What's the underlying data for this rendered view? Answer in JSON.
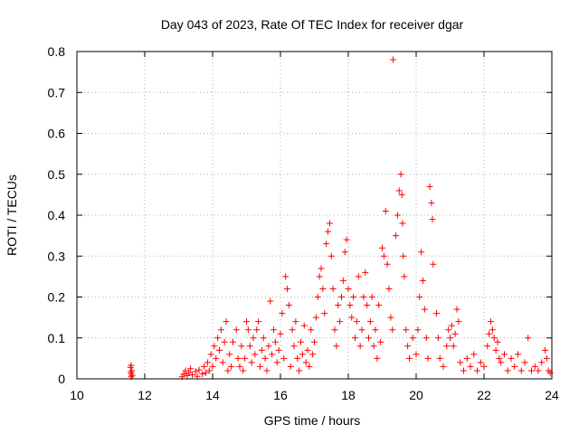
{
  "chart_data": {
    "type": "scatter",
    "title": "Day 043 of 2023, Rate Of TEC Index for receiver dgar",
    "xlabel": "GPS time / hours",
    "ylabel": "ROTI / TECUs",
    "xlim": [
      10,
      24
    ],
    "ylim": [
      0,
      0.8
    ],
    "x_ticks": [
      10,
      12,
      14,
      16,
      18,
      20,
      22,
      24
    ],
    "y_ticks": [
      0,
      0.1,
      0.2,
      0.3,
      0.4,
      0.5,
      0.6,
      0.7,
      0.8
    ],
    "grid": true,
    "marker": "plus",
    "color": "#ff0000",
    "points": [
      [
        11.6,
        0.005
      ],
      [
        11.6,
        0.012
      ],
      [
        11.62,
        0.02
      ],
      [
        11.58,
        0.028
      ],
      [
        11.6,
        0.033
      ],
      [
        11.63,
        0.008
      ],
      [
        11.59,
        0.016
      ],
      [
        13.1,
        0.005
      ],
      [
        13.15,
        0.012
      ],
      [
        13.2,
        0.02
      ],
      [
        13.25,
        0.008
      ],
      [
        13.3,
        0.015
      ],
      [
        13.35,
        0.025
      ],
      [
        13.4,
        0.01
      ],
      [
        13.5,
        0.018
      ],
      [
        13.55,
        0.006
      ],
      [
        13.6,
        0.022
      ],
      [
        13.7,
        0.012
      ],
      [
        13.75,
        0.03
      ],
      [
        13.8,
        0.015
      ],
      [
        13.85,
        0.04
      ],
      [
        13.9,
        0.02
      ],
      [
        13.95,
        0.06
      ],
      [
        14.0,
        0.03
      ],
      [
        14.05,
        0.08
      ],
      [
        14.1,
        0.05
      ],
      [
        14.15,
        0.1
      ],
      [
        14.2,
        0.07
      ],
      [
        14.25,
        0.12
      ],
      [
        14.3,
        0.04
      ],
      [
        14.35,
        0.09
      ],
      [
        14.4,
        0.14
      ],
      [
        14.45,
        0.02
      ],
      [
        14.5,
        0.06
      ],
      [
        14.55,
        0.03
      ],
      [
        14.6,
        0.09
      ],
      [
        14.7,
        0.12
      ],
      [
        14.75,
        0.05
      ],
      [
        14.8,
        0.03
      ],
      [
        14.85,
        0.08
      ],
      [
        14.9,
        0.02
      ],
      [
        14.95,
        0.05
      ],
      [
        15.0,
        0.14
      ],
      [
        15.05,
        0.12
      ],
      [
        15.1,
        0.08
      ],
      [
        15.15,
        0.04
      ],
      [
        15.2,
        0.1
      ],
      [
        15.25,
        0.06
      ],
      [
        15.3,
        0.12
      ],
      [
        15.35,
        0.14
      ],
      [
        15.4,
        0.03
      ],
      [
        15.45,
        0.07
      ],
      [
        15.5,
        0.1
      ],
      [
        15.55,
        0.05
      ],
      [
        15.6,
        0.02
      ],
      [
        15.65,
        0.08
      ],
      [
        15.7,
        0.19
      ],
      [
        15.75,
        0.06
      ],
      [
        15.8,
        0.12
      ],
      [
        15.85,
        0.09
      ],
      [
        15.9,
        0.04
      ],
      [
        15.95,
        0.07
      ],
      [
        16.0,
        0.11
      ],
      [
        16.05,
        0.16
      ],
      [
        16.1,
        0.05
      ],
      [
        16.15,
        0.25
      ],
      [
        16.2,
        0.22
      ],
      [
        16.25,
        0.18
      ],
      [
        16.3,
        0.03
      ],
      [
        16.35,
        0.12
      ],
      [
        16.4,
        0.08
      ],
      [
        16.45,
        0.14
      ],
      [
        16.5,
        0.05
      ],
      [
        16.55,
        0.02
      ],
      [
        16.6,
        0.09
      ],
      [
        16.65,
        0.06
      ],
      [
        16.7,
        0.13
      ],
      [
        16.75,
        0.04
      ],
      [
        16.8,
        0.07
      ],
      [
        16.85,
        0.03
      ],
      [
        16.9,
        0.12
      ],
      [
        16.95,
        0.06
      ],
      [
        17.0,
        0.09
      ],
      [
        17.05,
        0.15
      ],
      [
        17.1,
        0.2
      ],
      [
        17.15,
        0.25
      ],
      [
        17.2,
        0.27
      ],
      [
        17.25,
        0.22
      ],
      [
        17.3,
        0.16
      ],
      [
        17.35,
        0.33
      ],
      [
        17.4,
        0.36
      ],
      [
        17.45,
        0.38
      ],
      [
        17.5,
        0.3
      ],
      [
        17.55,
        0.22
      ],
      [
        17.6,
        0.12
      ],
      [
        17.65,
        0.08
      ],
      [
        17.7,
        0.18
      ],
      [
        17.75,
        0.14
      ],
      [
        17.8,
        0.2
      ],
      [
        17.85,
        0.24
      ],
      [
        17.9,
        0.31
      ],
      [
        17.95,
        0.34
      ],
      [
        18.0,
        0.22
      ],
      [
        18.05,
        0.18
      ],
      [
        18.1,
        0.15
      ],
      [
        18.15,
        0.2
      ],
      [
        18.2,
        0.1
      ],
      [
        18.25,
        0.14
      ],
      [
        18.3,
        0.25
      ],
      [
        18.35,
        0.08
      ],
      [
        18.4,
        0.12
      ],
      [
        18.45,
        0.2
      ],
      [
        18.5,
        0.26
      ],
      [
        18.55,
        0.18
      ],
      [
        18.6,
        0.1
      ],
      [
        18.65,
        0.14
      ],
      [
        18.7,
        0.2
      ],
      [
        18.75,
        0.08
      ],
      [
        18.8,
        0.12
      ],
      [
        18.85,
        0.05
      ],
      [
        18.9,
        0.18
      ],
      [
        18.95,
        0.09
      ],
      [
        19.0,
        0.32
      ],
      [
        19.05,
        0.3
      ],
      [
        19.1,
        0.41
      ],
      [
        19.15,
        0.28
      ],
      [
        19.2,
        0.22
      ],
      [
        19.25,
        0.15
      ],
      [
        19.3,
        0.12
      ],
      [
        19.32,
        0.78
      ],
      [
        19.4,
        0.35
      ],
      [
        19.45,
        0.4
      ],
      [
        19.5,
        0.46
      ],
      [
        19.55,
        0.5
      ],
      [
        19.58,
        0.45
      ],
      [
        19.6,
        0.38
      ],
      [
        19.62,
        0.3
      ],
      [
        19.65,
        0.25
      ],
      [
        19.7,
        0.12
      ],
      [
        19.75,
        0.08
      ],
      [
        19.8,
        0.05
      ],
      [
        19.9,
        0.1
      ],
      [
        20.0,
        0.06
      ],
      [
        20.05,
        0.12
      ],
      [
        20.1,
        0.2
      ],
      [
        20.15,
        0.31
      ],
      [
        20.2,
        0.24
      ],
      [
        20.25,
        0.17
      ],
      [
        20.3,
        0.1
      ],
      [
        20.35,
        0.05
      ],
      [
        20.4,
        0.47
      ],
      [
        20.45,
        0.43
      ],
      [
        20.48,
        0.39
      ],
      [
        20.5,
        0.28
      ],
      [
        20.6,
        0.16
      ],
      [
        20.65,
        0.1
      ],
      [
        20.7,
        0.05
      ],
      [
        20.8,
        0.03
      ],
      [
        20.9,
        0.08
      ],
      [
        20.95,
        0.12
      ],
      [
        21.0,
        0.1
      ],
      [
        21.05,
        0.13
      ],
      [
        21.1,
        0.08
      ],
      [
        21.15,
        0.11
      ],
      [
        21.2,
        0.17
      ],
      [
        21.25,
        0.14
      ],
      [
        21.3,
        0.04
      ],
      [
        21.4,
        0.02
      ],
      [
        21.5,
        0.05
      ],
      [
        21.6,
        0.03
      ],
      [
        21.7,
        0.06
      ],
      [
        21.8,
        0.02
      ],
      [
        21.9,
        0.04
      ],
      [
        22.0,
        0.03
      ],
      [
        22.1,
        0.08
      ],
      [
        22.15,
        0.11
      ],
      [
        22.2,
        0.14
      ],
      [
        22.25,
        0.12
      ],
      [
        22.3,
        0.1
      ],
      [
        22.35,
        0.07
      ],
      [
        22.4,
        0.09
      ],
      [
        22.45,
        0.05
      ],
      [
        22.5,
        0.04
      ],
      [
        22.6,
        0.06
      ],
      [
        22.7,
        0.02
      ],
      [
        22.8,
        0.05
      ],
      [
        22.9,
        0.03
      ],
      [
        23.0,
        0.06
      ],
      [
        23.1,
        0.02
      ],
      [
        23.2,
        0.04
      ],
      [
        23.3,
        0.1
      ],
      [
        23.4,
        0.02
      ],
      [
        23.5,
        0.03
      ],
      [
        23.6,
        0.02
      ],
      [
        23.7,
        0.04
      ],
      [
        23.8,
        0.07
      ],
      [
        23.85,
        0.05
      ],
      [
        23.9,
        0.02
      ],
      [
        23.95,
        0.015
      ]
    ]
  }
}
